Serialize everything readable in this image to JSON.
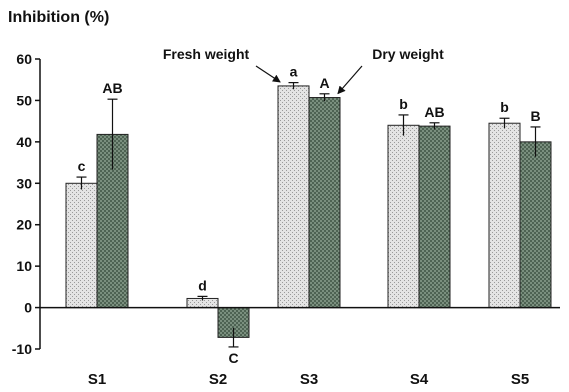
{
  "chart_data": {
    "type": "bar",
    "title": "Inhibition (%)",
    "xlabel": "",
    "ylabel": "",
    "ylim": [
      -10,
      60
    ],
    "yticks": [
      -10,
      0,
      10,
      20,
      30,
      40,
      50,
      60
    ],
    "ytick_labels": [
      "-10",
      "0",
      "10",
      "20",
      "30",
      "40",
      "50",
      "60"
    ],
    "categories": [
      "S1",
      "S2",
      "S3",
      "S4",
      "S5"
    ],
    "grid": false,
    "series": [
      {
        "name": "Fresh weight",
        "color": "#d6d6d6",
        "pattern": "light-dotted",
        "values": [
          30,
          2.2,
          53.5,
          44,
          44.5
        ],
        "errors": [
          1.5,
          0.5,
          0.8,
          2.5,
          1.2
        ],
        "significance": [
          "c",
          "d",
          "a",
          "b",
          "b"
        ]
      },
      {
        "name": "Dry weight",
        "color": "#556b5a",
        "pattern": "dark-checkered",
        "values": [
          41.8,
          -7.2,
          50.7,
          43.8,
          40
        ],
        "errors": [
          8.5,
          2.3,
          0.9,
          0.8,
          3.6
        ],
        "significance": [
          "AB",
          "C",
          "A",
          "AB",
          "B"
        ]
      }
    ],
    "annotations": [
      {
        "text": "Fresh weight",
        "category": "S3",
        "series": 0
      },
      {
        "text": "Dry weight",
        "category": "S3",
        "series": 1
      }
    ]
  }
}
